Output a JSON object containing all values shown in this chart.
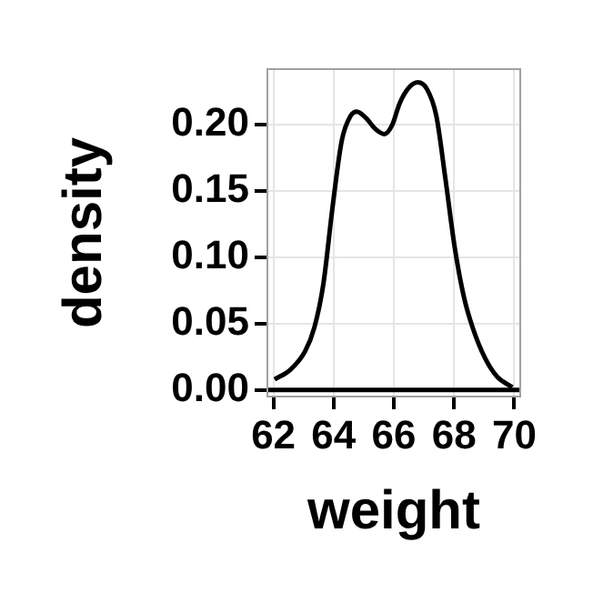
{
  "chart_data": {
    "type": "line",
    "xlabel": "weight",
    "ylabel": "density",
    "x": [
      62.04,
      62.55,
      63.05,
      63.36,
      63.66,
      63.96,
      64.27,
      64.57,
      64.77,
      65.08,
      65.38,
      65.69,
      65.95,
      66.19,
      66.5,
      66.8,
      67.1,
      67.41,
      67.71,
      68.02,
      68.32,
      68.62,
      69.03,
      69.43,
      69.94
    ],
    "series": [
      {
        "color": "#000000",
        "values": [
          0.008,
          0.015,
          0.029,
          0.047,
          0.08,
          0.137,
          0.188,
          0.207,
          0.21,
          0.205,
          0.197,
          0.193,
          0.2,
          0.216,
          0.228,
          0.232,
          0.227,
          0.207,
          0.16,
          0.108,
          0.071,
          0.047,
          0.024,
          0.01,
          0.002
        ]
      }
    ],
    "ref_lines": [
      {
        "axis": "y",
        "value": 0,
        "color": "#000000"
      }
    ],
    "xlim": [
      61.8,
      70.2
    ],
    "xticks": [
      62,
      64,
      66,
      68,
      70
    ],
    "ylim": [
      -0.005,
      0.242
    ],
    "yticks": [
      {
        "value": 0,
        "label": "0.00"
      },
      {
        "value": 0.05,
        "label": "0.05"
      },
      {
        "value": 0.1,
        "label": "0.10"
      },
      {
        "value": 0.15,
        "label": "0.15"
      },
      {
        "value": 0.2,
        "label": "0.20"
      }
    ],
    "grid": true,
    "legend": false,
    "marker": "none",
    "line_style": "solid"
  }
}
